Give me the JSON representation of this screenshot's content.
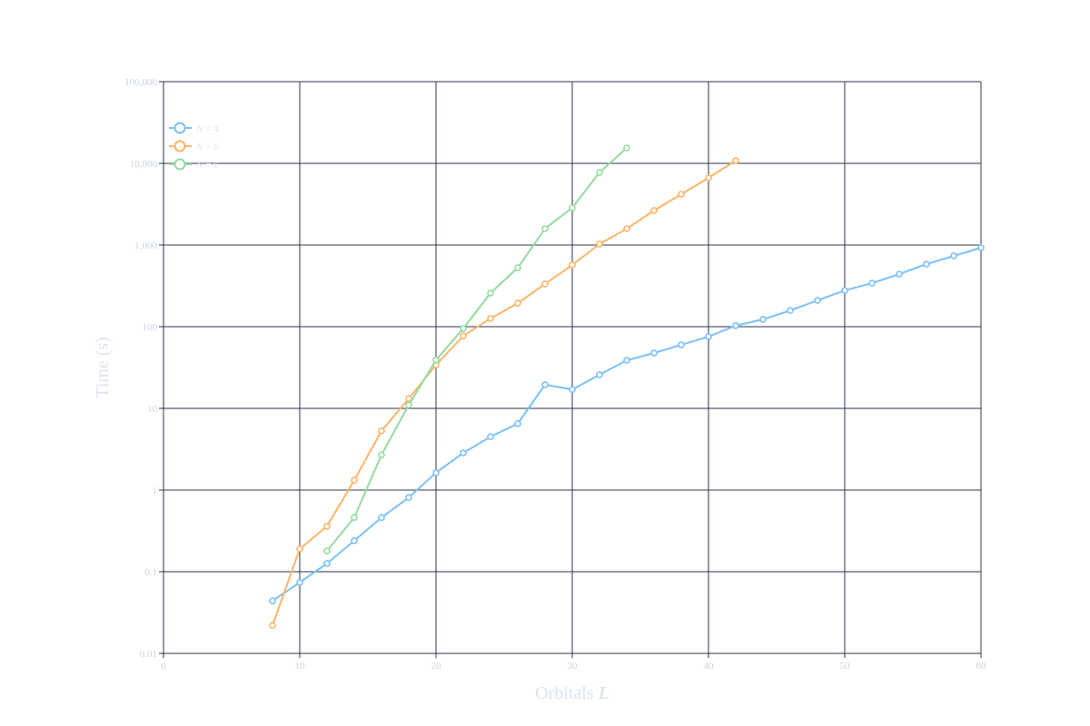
{
  "chart_data": {
    "type": "line",
    "xlabel": "Orbitals",
    "xlabel_var": "L",
    "ylabel": "Time (s)",
    "x_scale": "linear",
    "y_scale": "log",
    "xlim": [
      0,
      60
    ],
    "ylim": [
      0.01,
      100000
    ],
    "x_ticks": [
      "0",
      "10",
      "20",
      "30",
      "40",
      "50",
      "60"
    ],
    "y_ticks": [
      "0.01",
      "0.1",
      "1",
      "10",
      "100",
      "1,000",
      "10,000",
      "100,000"
    ],
    "grid": true,
    "legend_position": "top-left",
    "series": [
      {
        "name": "N = 4",
        "var": "N",
        "label": "= 4",
        "color": "#7cc0f8",
        "x": [
          8,
          10,
          12,
          14,
          16,
          18,
          20,
          22,
          24,
          26,
          28,
          30,
          32,
          34,
          36,
          38,
          40,
          42,
          44,
          46,
          48,
          50,
          52,
          54,
          56,
          58,
          60
        ],
        "y": [
          0.044,
          0.074,
          0.126,
          0.24,
          0.46,
          0.81,
          1.63,
          2.85,
          4.5,
          6.5,
          19.5,
          17,
          25.8,
          38.8,
          47.6,
          60,
          75.5,
          103,
          123,
          158,
          210,
          278,
          341,
          441,
          584,
          736,
          926
        ]
      },
      {
        "name": "N = 6",
        "var": "N",
        "label": "= 6",
        "color": "#fdb56a",
        "x": [
          8,
          10,
          12,
          14,
          16,
          18,
          20,
          22,
          24,
          26,
          28,
          30,
          32,
          34,
          36,
          38,
          40,
          42
        ],
        "y": [
          0.022,
          0.19,
          0.36,
          1.32,
          5.3,
          13.2,
          34,
          77,
          126,
          194,
          333,
          570,
          1026,
          1585,
          2645,
          4190,
          6640,
          10800
        ]
      },
      {
        "name": "N = 8",
        "var": "N",
        "label": "= 8",
        "color": "#94dba0",
        "x": [
          12,
          14,
          16,
          18,
          20,
          22,
          24,
          26,
          28,
          30,
          32,
          34
        ],
        "y": [
          0.18,
          0.46,
          2.7,
          11,
          39,
          95,
          258,
          527,
          1585,
          2860,
          7740,
          15450
        ]
      }
    ]
  }
}
